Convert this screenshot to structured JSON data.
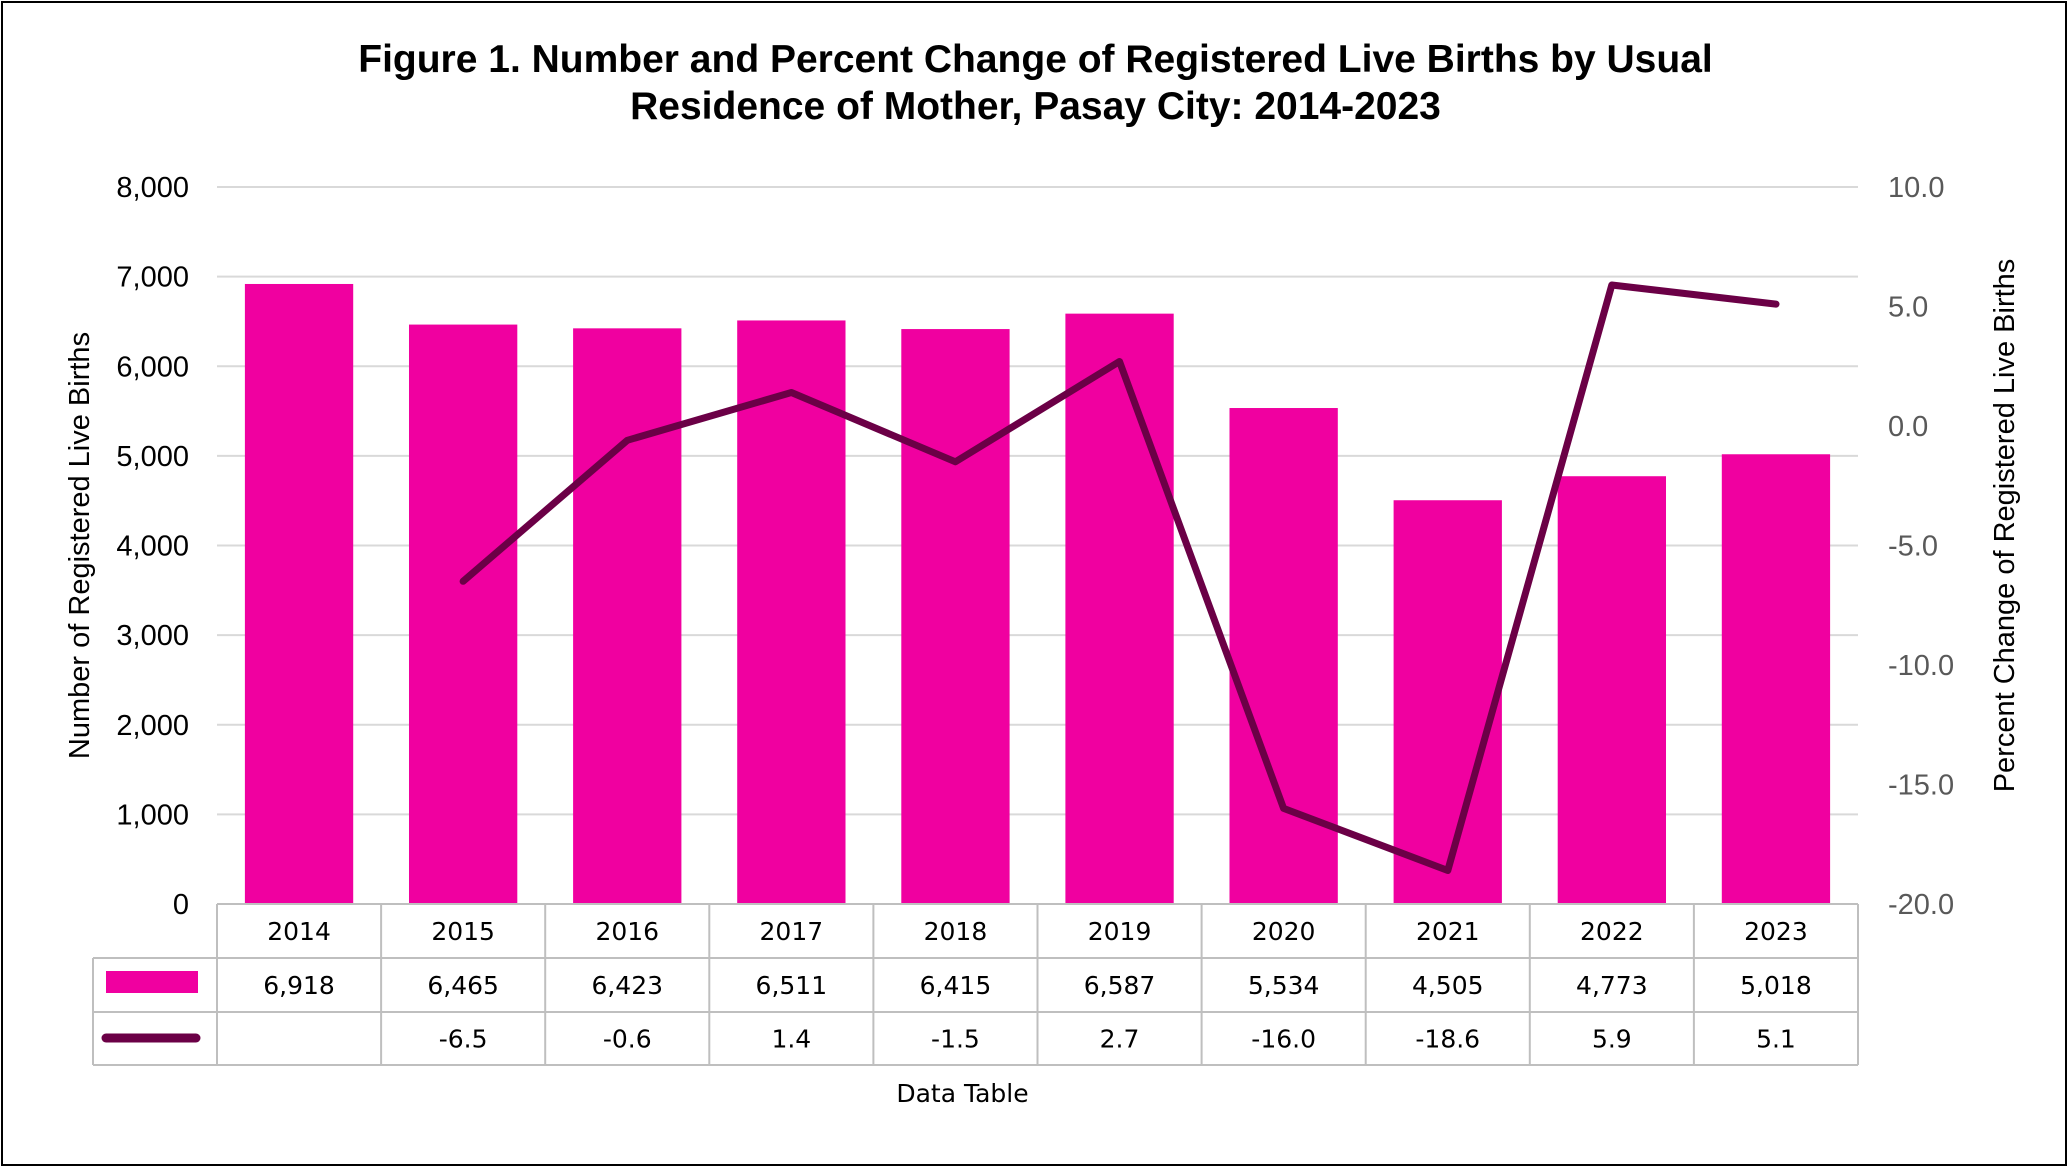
{
  "title_lines": [
    "Figure 1. Number and Percent Change of Registered Live Births by Usual",
    "Residence of Mother, Pasay City: 2014-2023"
  ],
  "chart_data": {
    "type": "bar",
    "title": "Figure 1. Number and Percent Change of Registered Live Births by Usual Residence of Mother, Pasay City: 2014-2023",
    "categories": [
      "2014",
      "2015",
      "2016",
      "2017",
      "2018",
      "2019",
      "2020",
      "2021",
      "2022",
      "2023"
    ],
    "series": [
      {
        "type": "bar",
        "axis": "left",
        "color": "#F000A0",
        "values": [
          6918,
          6465,
          6423,
          6511,
          6415,
          6587,
          5534,
          4505,
          4773,
          5018
        ],
        "labels": [
          "6,918",
          "6,465",
          "6,423",
          "6,511",
          "6,415",
          "6,587",
          "5,534",
          "4,505",
          "4,773",
          "5,018"
        ]
      },
      {
        "type": "line",
        "axis": "right",
        "color": "#6B0046",
        "values": [
          null,
          -6.5,
          -0.6,
          1.4,
          -1.5,
          2.7,
          -16.0,
          -18.6,
          5.9,
          5.1
        ],
        "labels": [
          "",
          "-6.5",
          "-0.6",
          "1.4",
          "-1.5",
          "2.7",
          "-16.0",
          "-18.6",
          "5.9",
          "5.1"
        ]
      }
    ],
    "ylabel": "Number of Registered Live Births",
    "y2label": "Percent Change of Registered Live Births",
    "ylim": [
      0,
      8000
    ],
    "y2lim": [
      -20,
      10
    ],
    "yticks": [
      "0",
      "1,000",
      "2,000",
      "3,000",
      "4,000",
      "5,000",
      "6,000",
      "7,000",
      "8,000"
    ],
    "y2ticks": [
      "-20.0",
      "-15.0",
      "-10.0",
      "-5.0",
      "0.0",
      "5.0",
      "10.0"
    ],
    "grid": true,
    "legend": "data table",
    "table_title": "Data Table"
  }
}
